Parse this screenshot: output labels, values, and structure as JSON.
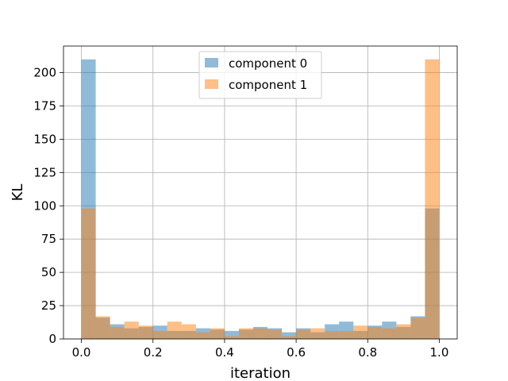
{
  "chart_data": {
    "type": "histogram",
    "xlabel": "iteration",
    "ylabel": "KL",
    "xlim": [
      -0.05,
      1.05
    ],
    "ylim": [
      0,
      220
    ],
    "xticks": [
      0.0,
      0.2,
      0.4,
      0.6,
      0.8,
      1.0
    ],
    "xtick_labels": [
      "0.0",
      "0.2",
      "0.4",
      "0.6",
      "0.8",
      "1.0"
    ],
    "yticks": [
      0,
      25,
      50,
      75,
      100,
      125,
      150,
      175,
      200
    ],
    "ytick_labels": [
      "0",
      "25",
      "50",
      "75",
      "100",
      "125",
      "150",
      "175",
      "200"
    ],
    "grid": true,
    "legend_position": "top-center",
    "bin_edges": [
      0.0,
      0.04,
      0.08,
      0.12,
      0.16,
      0.2,
      0.24,
      0.28,
      0.32,
      0.36,
      0.4,
      0.44,
      0.48,
      0.52,
      0.56,
      0.6,
      0.64,
      0.68,
      0.72,
      0.76,
      0.8,
      0.84,
      0.88,
      0.92,
      0.96,
      1.0
    ],
    "alpha": 0.5,
    "series": [
      {
        "name": "component 0",
        "color": "#1f77b4",
        "values": [
          210,
          16,
          11,
          8,
          9,
          10,
          6,
          6,
          8,
          7,
          6,
          7,
          9,
          8,
          5,
          8,
          5,
          11,
          13,
          6,
          10,
          13,
          9,
          17,
          98
        ]
      },
      {
        "name": "component 1",
        "color": "#ff7f0e",
        "values": [
          98,
          17,
          9,
          13,
          10,
          6,
          13,
          11,
          5,
          8,
          2,
          8,
          8,
          7,
          2,
          7,
          8,
          6,
          6,
          10,
          9,
          8,
          11,
          16,
          210
        ]
      }
    ]
  }
}
